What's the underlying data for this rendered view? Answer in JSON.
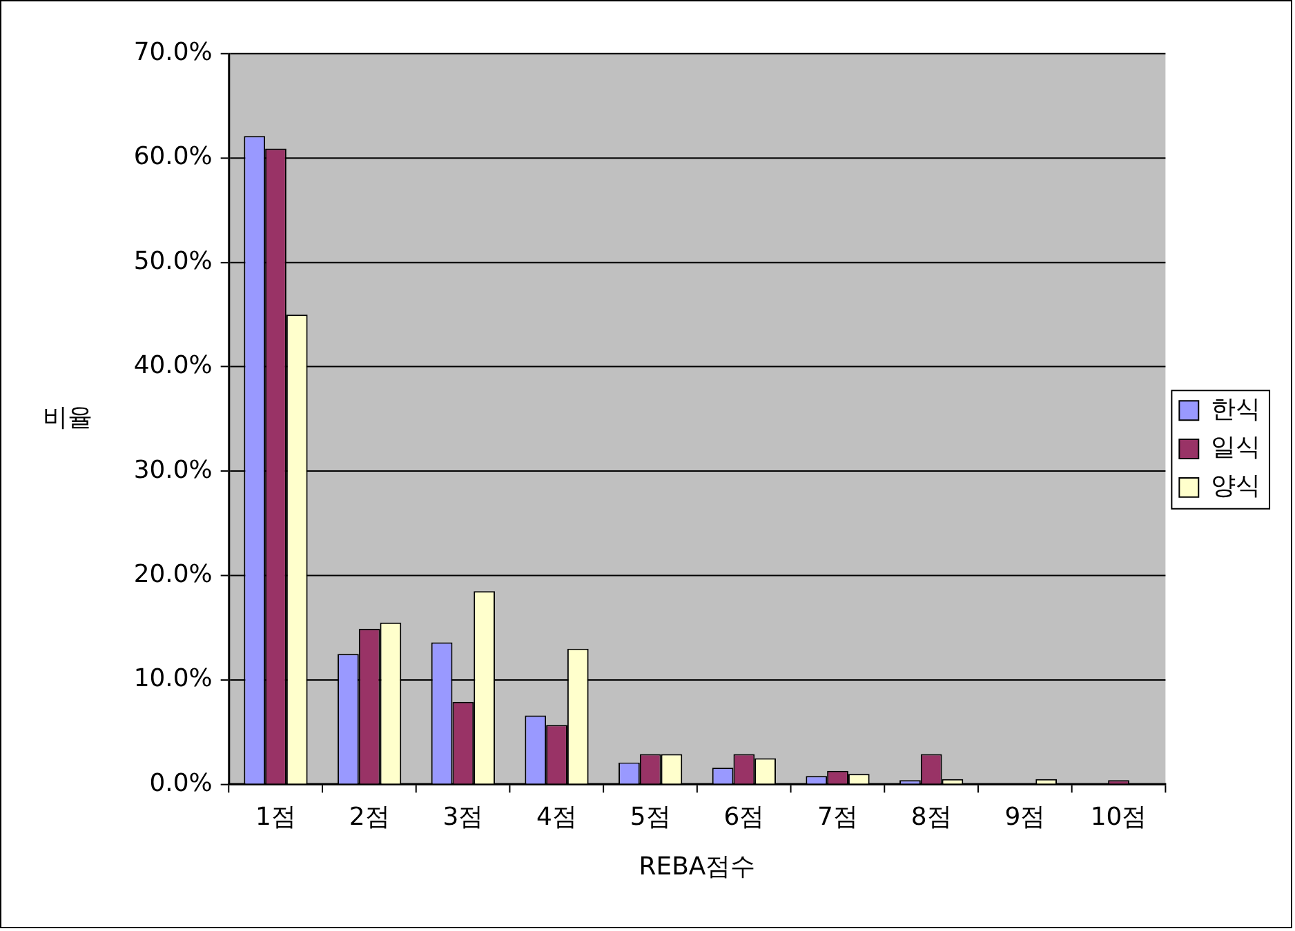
{
  "chart_data": {
    "type": "bar",
    "xlabel": "REBA점수",
    "ylabel": "비율",
    "categories": [
      "1점",
      "2점",
      "3점",
      "4점",
      "5점",
      "6점",
      "7점",
      "8점",
      "9점",
      "10점"
    ],
    "series": [
      {
        "name": "한식",
        "color": "#9999ff",
        "values": [
          62.1,
          12.5,
          13.6,
          6.6,
          2.1,
          1.6,
          0.8,
          0.4,
          0,
          0
        ]
      },
      {
        "name": "일식",
        "color": "#993366",
        "values": [
          60.9,
          14.9,
          7.9,
          5.7,
          2.9,
          2.9,
          1.3,
          2.9,
          0,
          0.4
        ]
      },
      {
        "name": "양식",
        "color": "#ffffcc",
        "values": [
          45.0,
          15.5,
          18.5,
          13.0,
          2.9,
          2.5,
          1.0,
          0.5,
          0.5,
          0
        ]
      }
    ],
    "ylim": [
      0,
      70
    ],
    "yticks": [
      {
        "value": 0,
        "label": "0.0%"
      },
      {
        "value": 10,
        "label": "10.0%"
      },
      {
        "value": 20,
        "label": "20.0%"
      },
      {
        "value": 30,
        "label": "30.0%"
      },
      {
        "value": 40,
        "label": "40.0%"
      },
      {
        "value": 50,
        "label": "50.0%"
      },
      {
        "value": 60,
        "label": "60.0%"
      },
      {
        "value": 70,
        "label": "70.0%"
      }
    ],
    "grid": "y",
    "legend": "right"
  }
}
